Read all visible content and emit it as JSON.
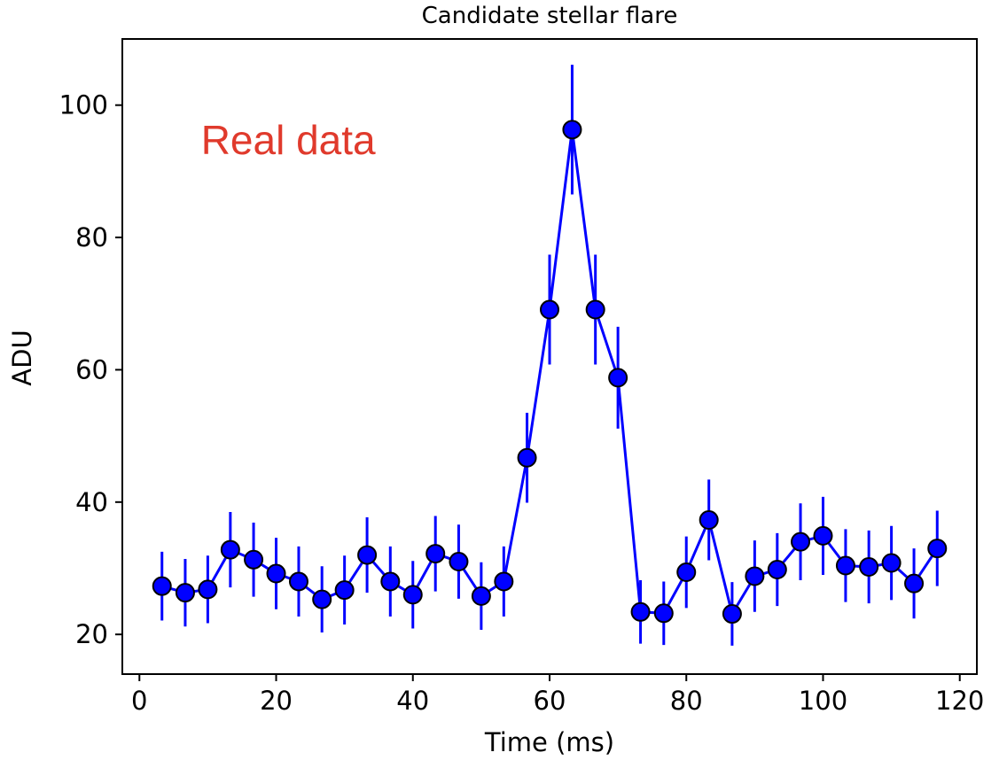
{
  "chart_data": {
    "type": "scatter",
    "title": "Candidate stellar flare",
    "xlabel": "Time (ms)",
    "ylabel": "ADU",
    "xlim": [
      -2.5,
      122.5
    ],
    "ylim": [
      14,
      110
    ],
    "xticks": [
      0,
      20,
      40,
      60,
      80,
      100,
      120
    ],
    "yticks": [
      20,
      40,
      60,
      80,
      100
    ],
    "grid": false,
    "colors": {
      "marker": "#0000ff",
      "marker_edge": "#000000",
      "line": "#0000ff",
      "errorbar": "#0000ff",
      "annotation": "#e03a2c"
    },
    "annotation": {
      "text": "Real data",
      "x": 9,
      "y": 95
    },
    "series": [
      {
        "x": [
          3.3,
          6.7,
          10.0,
          13.3,
          16.7,
          20.0,
          23.3,
          26.7,
          30.0,
          33.3,
          36.7,
          40.0,
          43.3,
          46.7,
          50.0,
          53.3,
          56.7,
          60.0,
          63.3,
          66.7,
          70.0,
          73.3,
          76.7,
          80.0,
          83.3,
          86.7,
          90.0,
          93.3,
          96.7,
          100.0,
          103.3,
          106.7,
          110.0,
          113.3,
          116.7
        ],
        "y": [
          27.3,
          26.3,
          26.8,
          32.8,
          31.3,
          29.2,
          28.0,
          25.3,
          26.7,
          32.0,
          28.0,
          26.0,
          32.2,
          31.0,
          25.8,
          28.0,
          46.7,
          69.1,
          96.3,
          69.1,
          58.8,
          23.4,
          23.2,
          29.4,
          37.3,
          23.1,
          28.8,
          29.8,
          34.0,
          34.9,
          30.4,
          30.2,
          30.8,
          27.7,
          33.0
        ],
        "yerr": [
          5.2,
          5.1,
          5.1,
          5.7,
          5.6,
          5.4,
          5.3,
          5.0,
          5.2,
          5.7,
          5.3,
          5.1,
          5.7,
          5.6,
          5.1,
          5.3,
          6.8,
          8.3,
          9.8,
          8.3,
          7.7,
          4.8,
          4.8,
          5.4,
          6.1,
          4.8,
          5.4,
          5.5,
          5.8,
          5.9,
          5.5,
          5.5,
          5.6,
          5.3,
          5.7
        ]
      }
    ]
  }
}
